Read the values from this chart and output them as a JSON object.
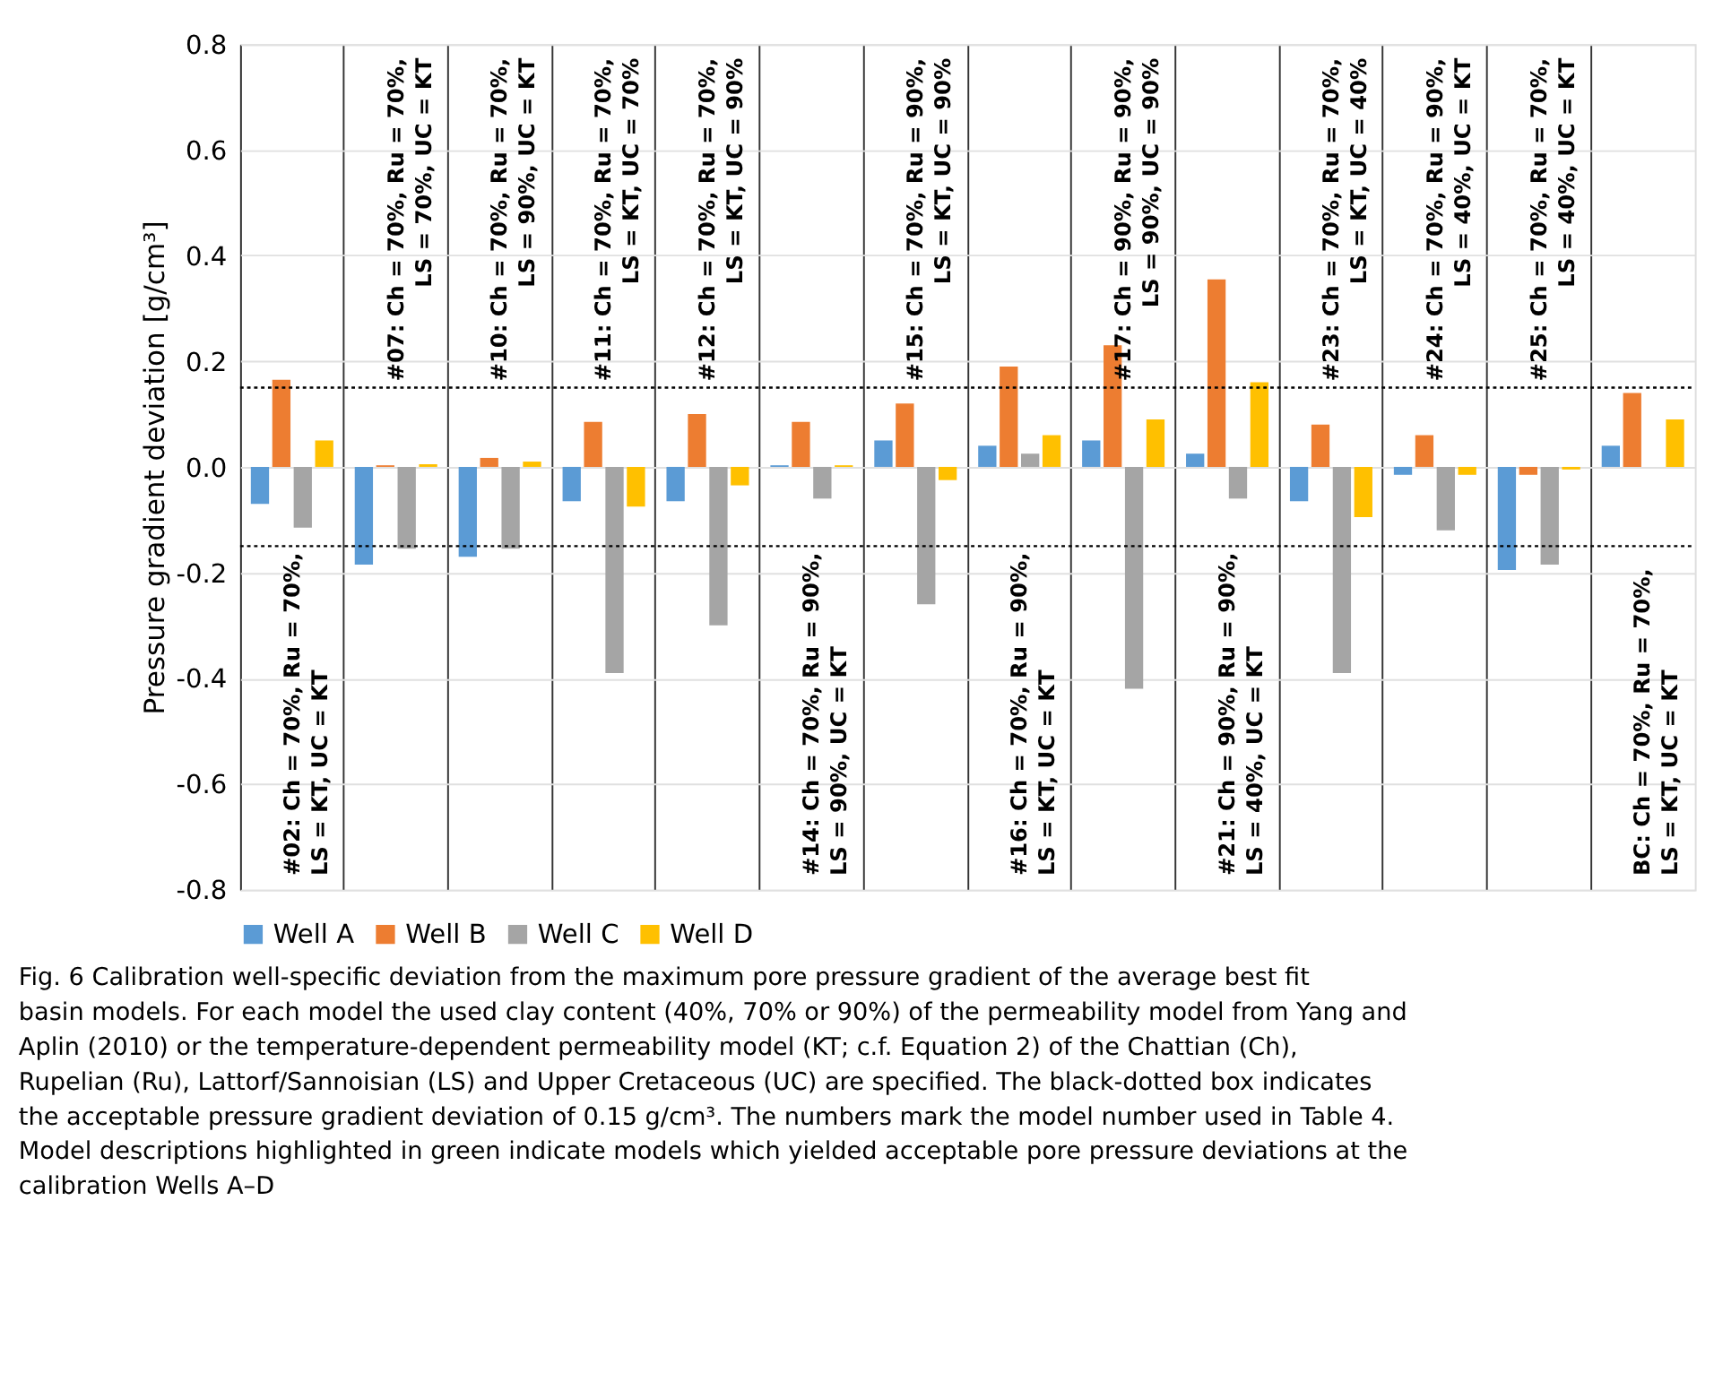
{
  "chart_data": {
    "type": "bar",
    "ylabel": "Pressure gradient deviation [g/cm³]",
    "categories": [
      null,
      null,
      null,
      null,
      null,
      null,
      null,
      null,
      null,
      null,
      null,
      null,
      null,
      null
    ],
    "series": [
      {
        "name": "Well A",
        "color": "#5b9bd5",
        "values": [
          -0.07,
          -0.185,
          -0.17,
          -0.065,
          -0.065,
          0.003,
          0.05,
          0.04,
          0.05,
          0.025,
          -0.065,
          -0.015,
          -0.195,
          0.04
        ]
      },
      {
        "name": "Well B",
        "color": "#ed7d31",
        "values": [
          0.165,
          0.003,
          0.017,
          0.085,
          0.1,
          0.085,
          0.12,
          0.19,
          0.23,
          0.355,
          0.08,
          0.06,
          -0.015,
          0.14
        ]
      },
      {
        "name": "Well C",
        "color": "#a5a5a5",
        "values": [
          -0.115,
          -0.155,
          -0.155,
          -0.39,
          -0.3,
          -0.06,
          -0.26,
          0.025,
          -0.42,
          -0.06,
          -0.39,
          -0.12,
          -0.185,
          null
        ]
      },
      {
        "name": "Well D",
        "color": "#ffc000",
        "values": [
          0.05,
          0.005,
          0.01,
          -0.075,
          -0.035,
          0.003,
          -0.025,
          0.06,
          0.09,
          0.16,
          -0.095,
          -0.015,
          -0.005,
          0.09
        ]
      }
    ],
    "ylim": [
      -0.8,
      0.8
    ],
    "yticks": [
      -0.8,
      -0.6,
      -0.4,
      -0.2,
      {
        "value": 0,
        "label": "0.0"
      },
      0.2,
      0.4,
      0.6,
      0.8
    ],
    "grid": true,
    "legend": "bottom",
    "tick_labels": "y",
    "ref_lines": [
      {
        "axis": "y",
        "value": 0.15,
        "color": "#000000",
        "line_style": "dotted"
      },
      {
        "axis": "y",
        "value": -0.15,
        "color": "#000000",
        "line_style": "dotted"
      }
    ],
    "annotations": [
      "#02: Ch = 70%, Ru = 70%,\nLS = KT, UC = KT",
      "#07: Ch = 70%, Ru = 70%,\nLS = 70%, UC = KT",
      "#10: Ch = 70%, Ru = 70%,\nLS = 90%, UC = KT",
      "#11: Ch = 70%, Ru = 70%,\nLS = KT, UC = 70%",
      "#12: Ch = 70%, Ru = 70%,\nLS = KT, UC = 90%",
      "#14: Ch = 70%, Ru = 90%,\nLS = 90%, UC = KT",
      "#15: Ch = 70%, Ru = 90%,\nLS = KT, UC = 90%",
      "#16: Ch = 70%, Ru = 90%,\nLS = KT, UC = KT",
      "#17: Ch = 90%, Ru = 90%,\nLS = 90%, UC = 90%",
      "#21: Ch = 90%, Ru = 90%,\nLS = 40%, UC = KT",
      "#23: Ch = 70%, Ru = 70%,\nLS = KT, UC = 40%",
      "#24: Ch = 70%, Ru = 90%,\nLS = 40%, UC = KT",
      "#25: Ch = 70%, Ru = 70%,\nLS = 40%, UC = KT",
      "BC: Ch = 70%, Ru = 70%,\nLS = KT, UC = KT",
      "Fig. 6  Calibration well-specific deviation from the maximum pore pressure gradient of the average best fit basin models. For each model the used clay content (40%, 70% or 90%) of the permeability model from Yang and Aplin (2010) or the temperature-dependent permeability model (KT; c.f. Equation 2) of the Chattian (Ch), Rupelian (Ru), Lattorf/Sannoisian (LS) and Upper Cretaceous (UC) are specified. The black-dotted box indicates the acceptable pressure gradient deviation of 0.15 g/cm³. The numbers mark the model number used in Table 4. Model descriptions highlighted in green indicate models which yielded acceptable pore pressure deviations at the calibration Wells A–D"
    ]
  }
}
